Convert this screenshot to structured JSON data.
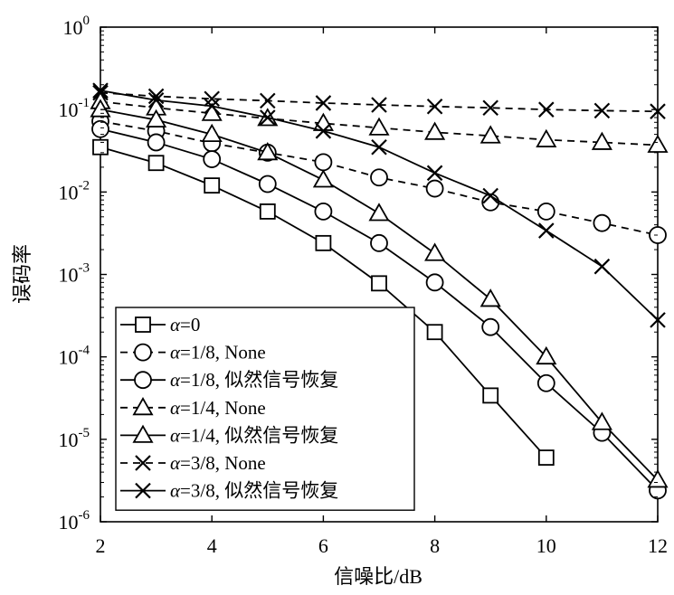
{
  "chart_data": {
    "type": "line",
    "xlabel": "信噪比/dB",
    "ylabel": "误码率",
    "xlim": [
      2,
      12
    ],
    "ylim": [
      1e-06,
      1
    ],
    "yscale": "log",
    "grid": false,
    "legend_position": "bottom-left",
    "x_ticks": [
      2,
      4,
      6,
      8,
      10,
      12
    ],
    "y_ticks": [
      {
        "value": 1,
        "base": "10",
        "exp": "0"
      },
      {
        "value": 0.1,
        "base": "10",
        "exp": "-1"
      },
      {
        "value": 0.01,
        "base": "10",
        "exp": "-2"
      },
      {
        "value": 0.001,
        "base": "10",
        "exp": "-3"
      },
      {
        "value": 0.0001,
        "base": "10",
        "exp": "-4"
      },
      {
        "value": 1e-05,
        "base": "10",
        "exp": "-5"
      },
      {
        "value": 1e-06,
        "base": "10",
        "exp": "-6"
      }
    ],
    "series": [
      {
        "key": "s1",
        "name": "α=0",
        "marker": "square",
        "dashed": false,
        "x": [
          2,
          3,
          4,
          5,
          6,
          7,
          8,
          9,
          10
        ],
        "y": [
          0.035,
          0.0225,
          0.012,
          0.0058,
          0.0024,
          0.00078,
          0.0002,
          3.4e-05,
          6e-06
        ]
      },
      {
        "key": "s2",
        "name": "α=1/8, None",
        "marker": "circle",
        "dashed": true,
        "x": [
          2,
          3,
          4,
          5,
          6,
          7,
          8,
          9,
          10,
          11,
          12
        ],
        "y": [
          0.072,
          0.055,
          0.039,
          0.03,
          0.023,
          0.015,
          0.011,
          0.0075,
          0.0058,
          0.0042,
          0.003
        ]
      },
      {
        "key": "s3",
        "name": "α=1/8, 似然信号恢复",
        "marker": "circle",
        "dashed": false,
        "x": [
          2,
          3,
          4,
          5,
          6,
          7,
          8,
          9,
          10,
          11,
          12
        ],
        "y": [
          0.058,
          0.04,
          0.025,
          0.0125,
          0.0058,
          0.0024,
          0.0008,
          0.00023,
          4.8e-05,
          1.2e-05,
          2.4e-06
        ]
      },
      {
        "key": "s4",
        "name": "α=1/4, None",
        "marker": "triangle",
        "dashed": true,
        "x": [
          2,
          3,
          4,
          5,
          6,
          7,
          8,
          9,
          10,
          11,
          12
        ],
        "y": [
          0.125,
          0.105,
          0.09,
          0.078,
          0.068,
          0.06,
          0.053,
          0.048,
          0.043,
          0.04,
          0.037
        ]
      },
      {
        "key": "s5",
        "name": "α=1/4, 似然信号恢复",
        "marker": "triangle",
        "dashed": false,
        "x": [
          2,
          3,
          4,
          5,
          6,
          7,
          8,
          9,
          10,
          11,
          12
        ],
        "y": [
          0.1,
          0.075,
          0.05,
          0.03,
          0.014,
          0.0055,
          0.0018,
          0.0005,
          0.0001,
          1.6e-05,
          3.2e-06
        ]
      },
      {
        "key": "s6",
        "name": "α=3/8, None",
        "marker": "x",
        "dashed": true,
        "x": [
          2,
          3,
          4,
          5,
          6,
          7,
          8,
          9,
          10,
          11,
          12
        ],
        "y": [
          0.16,
          0.145,
          0.135,
          0.128,
          0.12,
          0.114,
          0.109,
          0.105,
          0.1,
          0.097,
          0.095
        ]
      },
      {
        "key": "s7",
        "name": "α=3/8, 似然信号恢复",
        "marker": "x",
        "dashed": false,
        "x": [
          2,
          3,
          4,
          5,
          6,
          7,
          8,
          9,
          10,
          11,
          12
        ],
        "y": [
          0.17,
          0.13,
          0.11,
          0.08,
          0.055,
          0.035,
          0.017,
          0.009,
          0.0034,
          0.00125,
          0.00028
        ]
      }
    ],
    "legend": [
      {
        "sym": "α",
        "rest": "=0",
        "series": "s1"
      },
      {
        "sym": "α",
        "rest": "=1/8, None",
        "series": "s2"
      },
      {
        "sym": "α",
        "rest": "=1/8, 似然信号恢复",
        "series": "s3"
      },
      {
        "sym": "α",
        "rest": "=1/4, None",
        "series": "s4"
      },
      {
        "sym": "α",
        "rest": "=1/4, 似然信号恢复",
        "series": "s5"
      },
      {
        "sym": "α",
        "rest": "=3/8, None",
        "series": "s6"
      },
      {
        "sym": "α",
        "rest": "=3/8, 似然信号恢复",
        "series": "s7"
      }
    ]
  }
}
